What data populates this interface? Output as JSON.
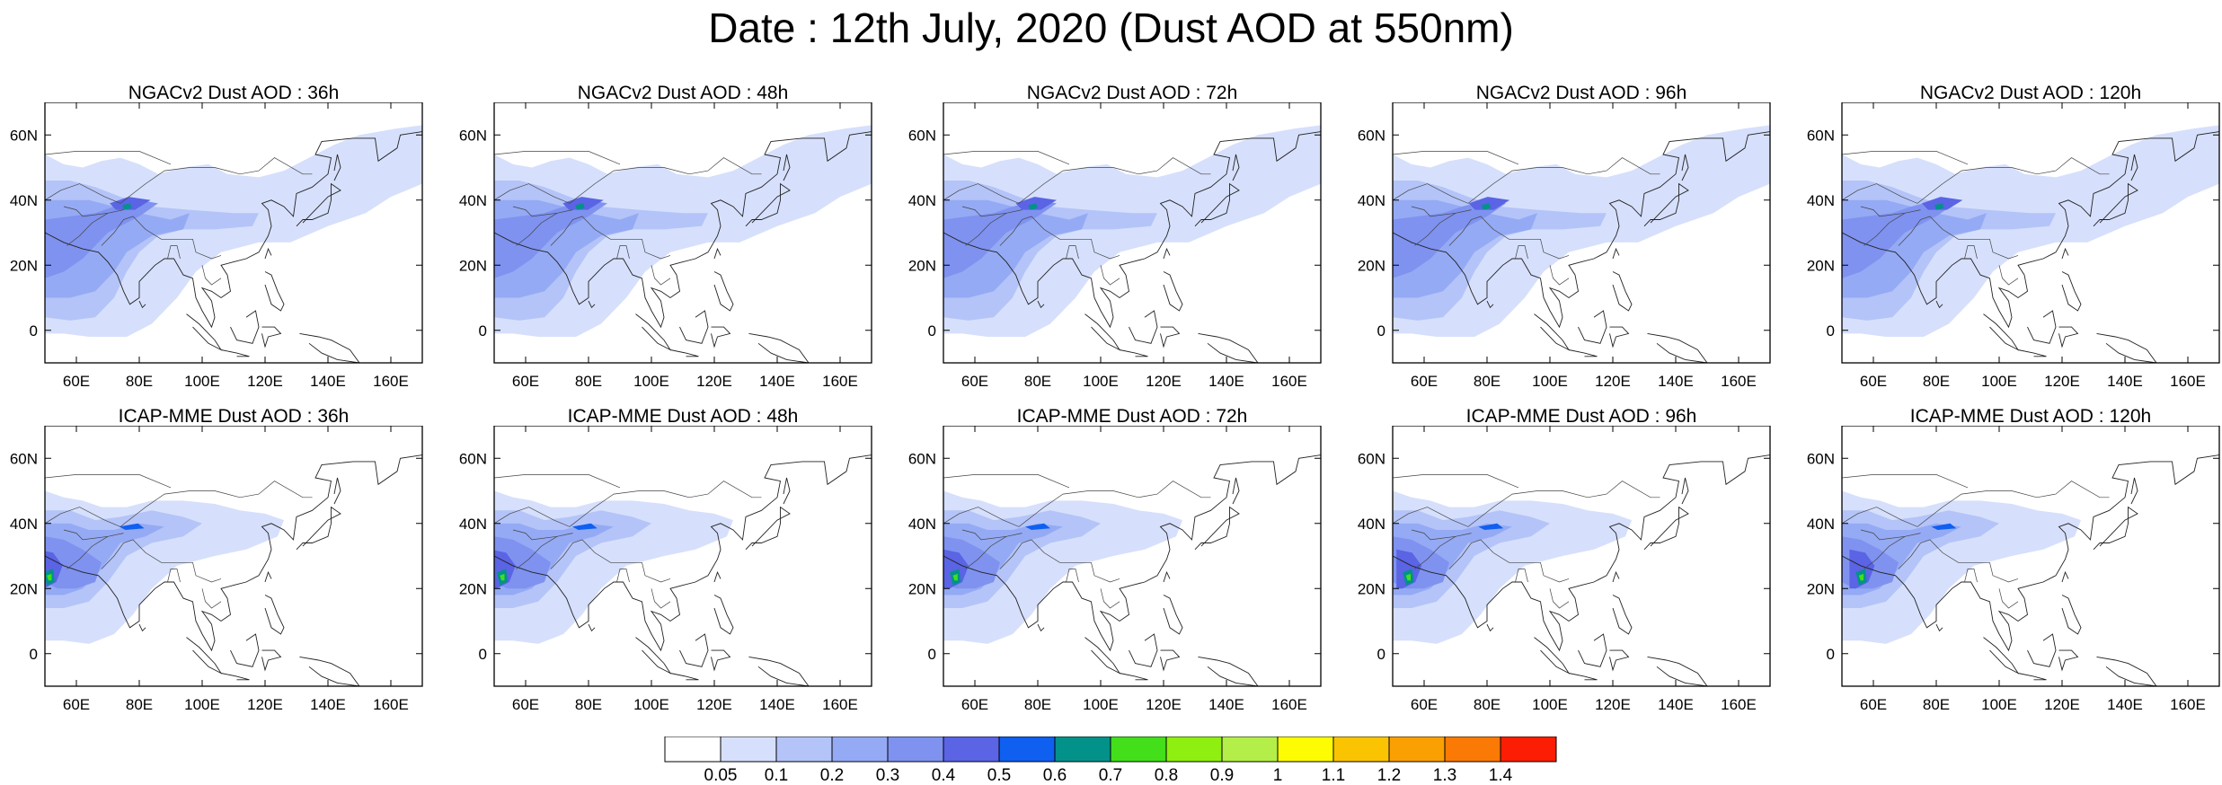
{
  "title": "Date : 12th July, 2020 (Dust AOD at 550nm)",
  "axes": {
    "lon_range": [
      50,
      170
    ],
    "lat_range": [
      -10,
      70
    ],
    "x_ticks": [
      "60E",
      "80E",
      "100E",
      "120E",
      "140E",
      "160E"
    ],
    "x_tick_values": [
      60,
      80,
      100,
      120,
      140,
      160
    ],
    "y_ticks": [
      "0",
      "20N",
      "40N",
      "60N"
    ],
    "y_tick_values": [
      0,
      20,
      40,
      60
    ]
  },
  "panels": [
    {
      "title": "NGACv2 Dust AOD : 36h",
      "model": "ngac"
    },
    {
      "title": "NGACv2 Dust AOD : 48h",
      "model": "ngac"
    },
    {
      "title": "NGACv2 Dust AOD : 72h",
      "model": "ngac"
    },
    {
      "title": "NGACv2 Dust AOD : 96h",
      "model": "ngac"
    },
    {
      "title": "NGACv2 Dust AOD : 120h",
      "model": "ngac"
    },
    {
      "title": "ICAP-MME Dust AOD : 36h",
      "model": "icap"
    },
    {
      "title": "ICAP-MME Dust AOD : 48h",
      "model": "icap"
    },
    {
      "title": "ICAP-MME Dust AOD : 72h",
      "model": "icap"
    },
    {
      "title": "ICAP-MME Dust AOD : 96h",
      "model": "icap"
    },
    {
      "title": "ICAP-MME Dust AOD : 120h",
      "model": "icap"
    }
  ],
  "colorbar": {
    "labels": [
      "0.05",
      "0.1",
      "0.2",
      "0.3",
      "0.4",
      "0.5",
      "0.6",
      "0.7",
      "0.8",
      "0.9",
      "1",
      "1.1",
      "1.2",
      "1.3",
      "1.4"
    ],
    "colors": [
      "#ffffff",
      "#d6e0fc",
      "#b4c4f8",
      "#95aaf4",
      "#7f92ef",
      "#5a64e4",
      "#0f5ff0",
      "#03928a",
      "#42df1a",
      "#8eef10",
      "#b4ee48",
      "#fefc02",
      "#fbc402",
      "#fba002",
      "#fa7a05",
      "#fb1e05"
    ]
  },
  "plume_levels": [
    {
      "level": "0.05-0.1",
      "color": "#d6e0fc"
    },
    {
      "level": "0.1-0.2",
      "color": "#b4c4f8"
    },
    {
      "level": "0.2-0.3",
      "color": "#95aaf4"
    },
    {
      "level": "0.3-0.4",
      "color": "#7f92ef"
    },
    {
      "level": "0.4-0.5",
      "color": "#5a64e4"
    },
    {
      "level": "0.5-0.6",
      "color": "#0f5ff0"
    },
    {
      "level": "0.6-0.7",
      "color": "#03928a"
    },
    {
      "level": "0.7-0.8",
      "color": "#42df1a"
    }
  ]
}
